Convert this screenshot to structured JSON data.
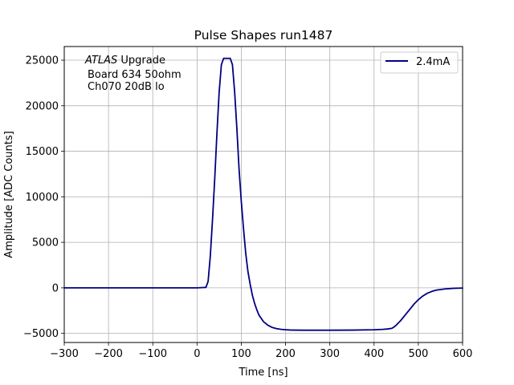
{
  "chart_data": {
    "type": "line",
    "title": "Pulse Shapes run1487",
    "xlabel": "Time [ns]",
    "ylabel": "Amplitude [ADC Counts]",
    "xlim": [
      -300,
      600
    ],
    "ylim": [
      -6000,
      26500
    ],
    "xticks": [
      -300,
      -200,
      -100,
      0,
      100,
      200,
      300,
      400,
      500,
      600
    ],
    "yticks": [
      -5000,
      0,
      5000,
      10000,
      15000,
      20000,
      25000
    ],
    "xtick_labels": [
      "−300",
      "−200",
      "−100",
      "0",
      "100",
      "200",
      "300",
      "400",
      "500",
      "600"
    ],
    "ytick_labels": [
      "−5000",
      "0",
      "5000",
      "10000",
      "15000",
      "20000",
      "25000"
    ],
    "grid": true,
    "legend_position": "top-right",
    "annotation": {
      "line1_italic": "ATLAS",
      "line1_rest": " Upgrade",
      "line2": "Board 634 50ohm",
      "line3": "Ch070 20dB lo"
    },
    "series": [
      {
        "name": "2.4mA",
        "color": "#000080",
        "x": [
          -300,
          0,
          20,
          25,
          30,
          35,
          40,
          45,
          50,
          55,
          60,
          65,
          70,
          75,
          80,
          85,
          90,
          95,
          100,
          105,
          110,
          115,
          120,
          125,
          130,
          135,
          140,
          150,
          160,
          170,
          180,
          190,
          200,
          210,
          220,
          240,
          260,
          300,
          350,
          400,
          420,
          430,
          440,
          445,
          450,
          460,
          470,
          480,
          490,
          500,
          510,
          520,
          530,
          540,
          560,
          580,
          600
        ],
        "y": [
          0,
          0,
          50,
          700,
          3500,
          7500,
          12000,
          17000,
          21500,
          24500,
          25200,
          25200,
          25200,
          25200,
          24500,
          21500,
          17500,
          13000,
          9500,
          6500,
          3800,
          1800,
          400,
          -800,
          -1700,
          -2400,
          -3000,
          -3700,
          -4100,
          -4350,
          -4480,
          -4560,
          -4600,
          -4630,
          -4640,
          -4650,
          -4650,
          -4650,
          -4640,
          -4600,
          -4560,
          -4520,
          -4450,
          -4300,
          -4100,
          -3600,
          -3000,
          -2400,
          -1800,
          -1300,
          -900,
          -600,
          -400,
          -250,
          -120,
          -50,
          -20
        ]
      }
    ]
  }
}
